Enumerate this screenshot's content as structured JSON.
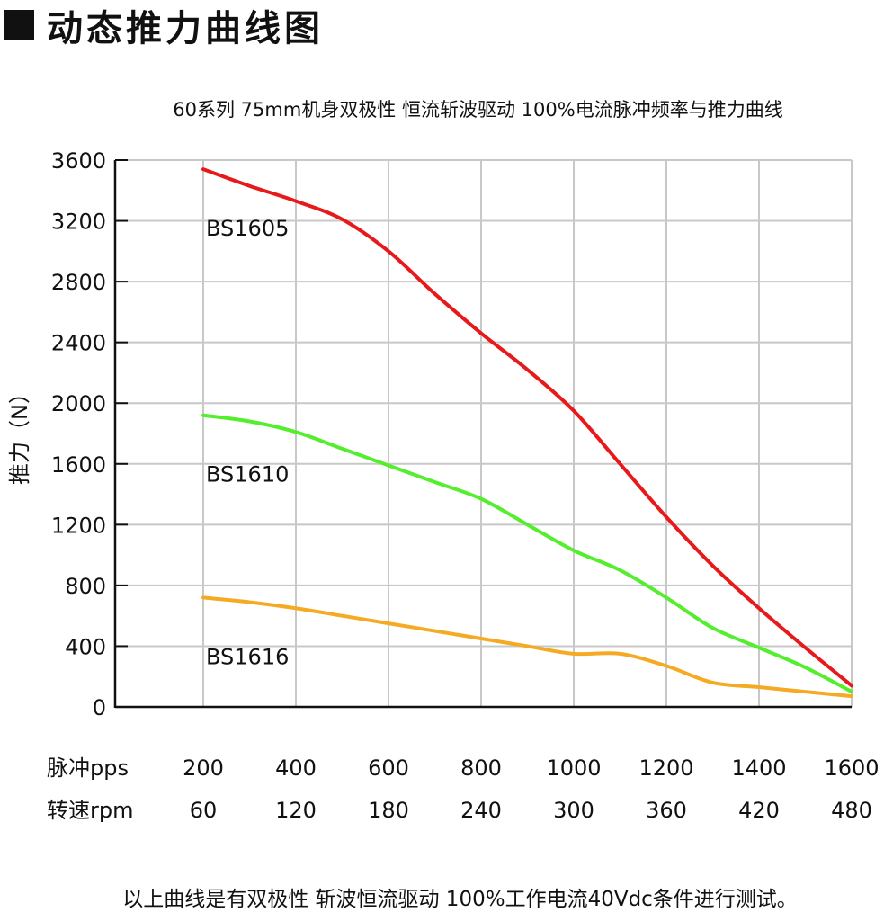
{
  "heading": "动态推力曲线图",
  "subtitle": "60系列 75mm机身双极性 恒流斩波驱动 100%电流脉冲频率与推力曲线",
  "footnote": "以上曲线是有双极性 斩波恒流驱动 100%工作电流40Vdc条件进行测试。",
  "colors": {
    "grid": "#c8c8c8",
    "axis": "#111111"
  },
  "chart_data": {
    "type": "line",
    "ylabel": "推力（N）",
    "ylim": [
      0,
      3600
    ],
    "yticks": [
      0,
      400,
      800,
      1200,
      1600,
      2000,
      2400,
      2800,
      3200,
      3600
    ],
    "xlim": [
      200,
      1600
    ],
    "x_rows": [
      {
        "label": "脉冲pps",
        "values": [
          "200",
          "400",
          "600",
          "800",
          "1000",
          "1200",
          "1400",
          "1600"
        ]
      },
      {
        "label": "转速rpm",
        "values": [
          "60",
          "120",
          "180",
          "240",
          "300",
          "360",
          "420",
          "480"
        ]
      }
    ],
    "grid": true,
    "series": [
      {
        "name": "BS1605",
        "color": "#e8191a",
        "x": [
          200,
          300,
          400,
          500,
          600,
          700,
          800,
          900,
          1000,
          1100,
          1200,
          1300,
          1400,
          1500,
          1600
        ],
        "y": [
          3540,
          3430,
          3330,
          3210,
          3000,
          2720,
          2460,
          2220,
          1950,
          1600,
          1250,
          930,
          650,
          390,
          140
        ]
      },
      {
        "name": "BS1610",
        "color": "#55ee2e",
        "x": [
          200,
          300,
          400,
          500,
          600,
          700,
          800,
          900,
          1000,
          1100,
          1200,
          1300,
          1400,
          1500,
          1600
        ],
        "y": [
          1920,
          1880,
          1810,
          1700,
          1590,
          1480,
          1370,
          1200,
          1030,
          900,
          720,
          520,
          390,
          260,
          100
        ]
      },
      {
        "name": "BS1616",
        "color": "#f5aa24",
        "x": [
          200,
          300,
          400,
          500,
          600,
          700,
          800,
          900,
          1000,
          1100,
          1200,
          1300,
          1400,
          1500,
          1600
        ],
        "y": [
          720,
          690,
          650,
          600,
          550,
          500,
          450,
          400,
          350,
          350,
          270,
          160,
          130,
          100,
          70
        ]
      }
    ]
  }
}
